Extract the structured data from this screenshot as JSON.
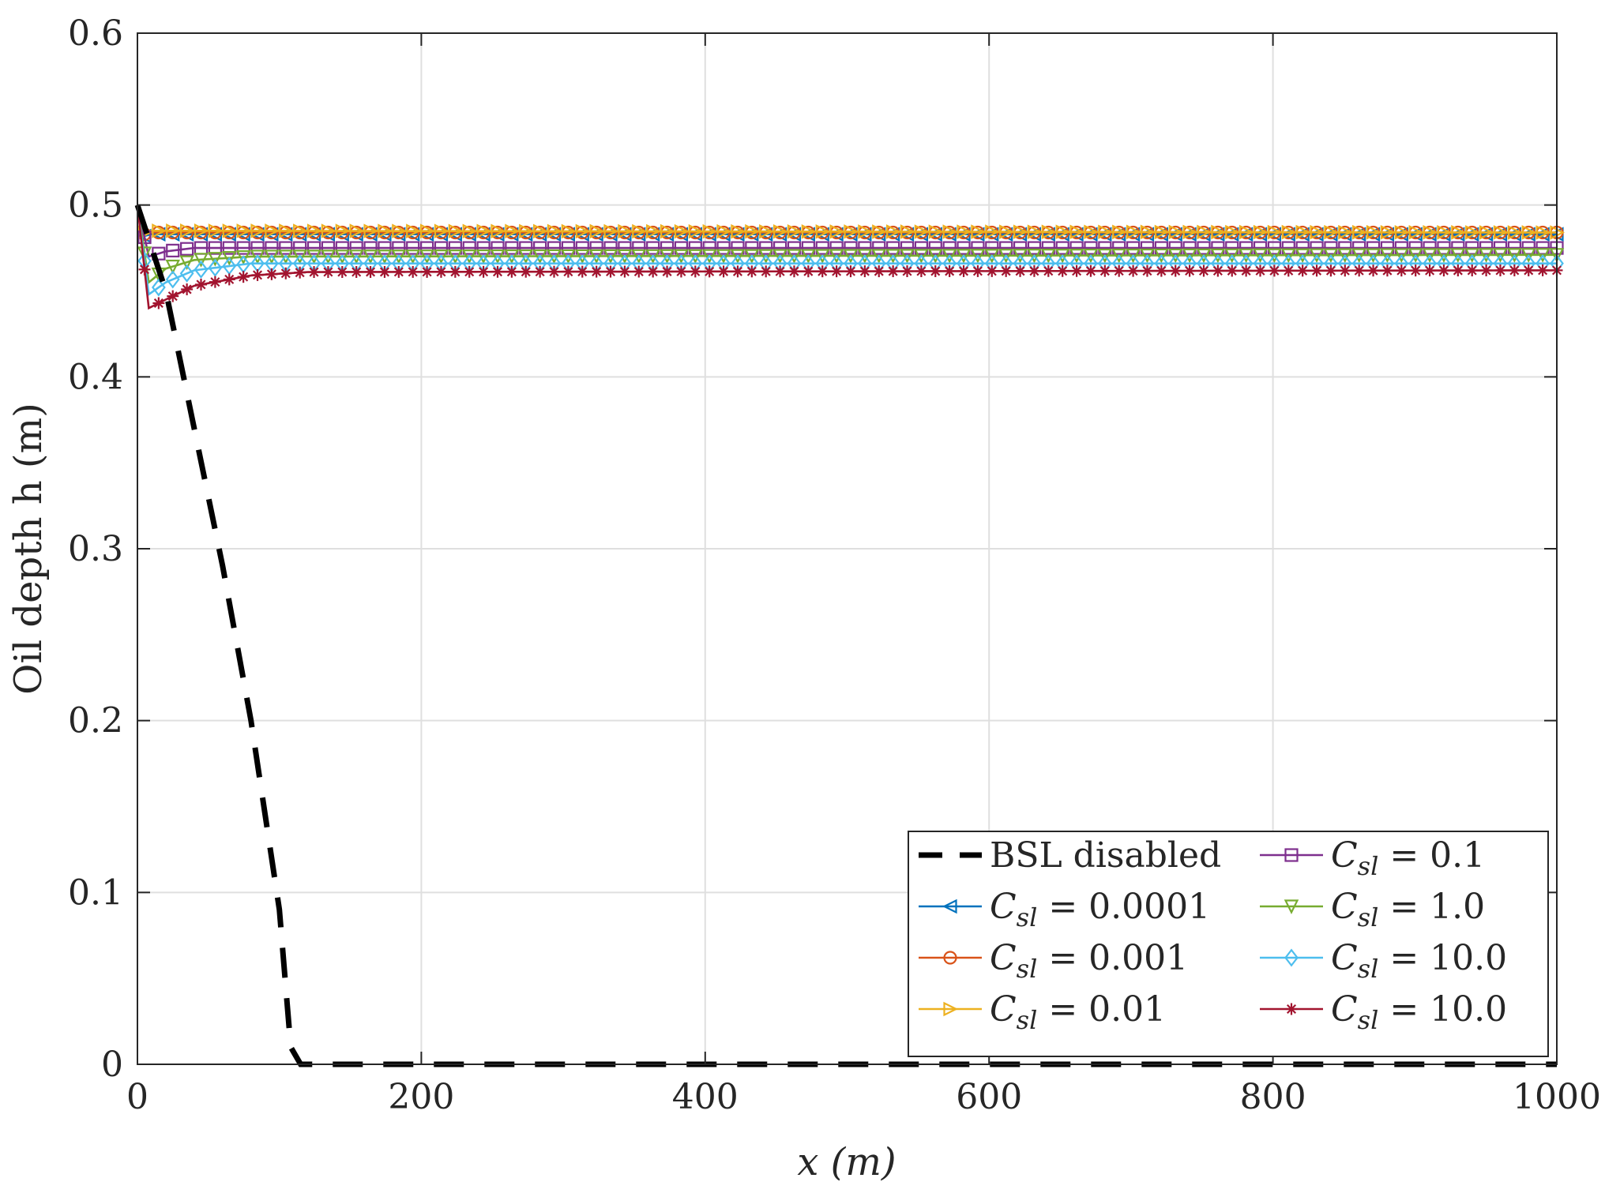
{
  "chart_data": {
    "type": "line",
    "xlabel": "x (m)",
    "ylabel": "Oil depth h (m)",
    "xlim": [
      0,
      1000
    ],
    "ylim": [
      0,
      0.6
    ],
    "xticks": [
      0,
      200,
      400,
      600,
      800,
      1000
    ],
    "xtick_labels": [
      "0",
      "200",
      "400",
      "600",
      "800",
      "1000"
    ],
    "yticks": [
      0,
      0.1,
      0.2,
      0.3,
      0.4,
      0.5,
      0.6
    ],
    "ytick_labels": [
      "0",
      "0.1",
      "0.2",
      "0.3",
      "0.4",
      "0.5",
      "0.6"
    ],
    "grid": true,
    "legend": {
      "position": "bottom-right",
      "columns": 2
    },
    "series": [
      {
        "name": "BSL disabled",
        "color": "#000000",
        "style": "dashed",
        "marker": "none",
        "x": [
          0,
          20,
          40,
          60,
          80,
          100,
          108,
          115,
          1000
        ],
        "y": [
          0.5,
          0.45,
          0.37,
          0.29,
          0.2,
          0.09,
          0.01,
          0,
          0
        ]
      },
      {
        "name": "C_sl = 0.0001",
        "label_value": "0.0001",
        "color": "#0072BD",
        "style": "solid",
        "marker": "triangle-left",
        "x": [
          0,
          5,
          10,
          20,
          40,
          1000
        ],
        "y": [
          0.5,
          0.482,
          0.483,
          0.483,
          0.483,
          0.483
        ]
      },
      {
        "name": "C_sl = 0.001",
        "label_value": "0.001",
        "color": "#D95319",
        "style": "solid",
        "marker": "circle",
        "x": [
          0,
          5,
          10,
          20,
          40,
          1000
        ],
        "y": [
          0.5,
          0.483,
          0.484,
          0.484,
          0.484,
          0.484
        ]
      },
      {
        "name": "C_sl = 0.01",
        "label_value": "0.01",
        "color": "#EDB120",
        "style": "solid",
        "marker": "triangle-right",
        "x": [
          0,
          5,
          10,
          20,
          40,
          1000
        ],
        "y": [
          0.5,
          0.484,
          0.485,
          0.485,
          0.485,
          0.484
        ]
      },
      {
        "name": "C_sl = 0.1",
        "label_value": "0.1",
        "color": "#7E2F8E",
        "style": "solid",
        "marker": "square",
        "x": [
          0,
          8,
          20,
          40,
          80,
          1000
        ],
        "y": [
          0.5,
          0.47,
          0.473,
          0.475,
          0.475,
          0.475
        ]
      },
      {
        "name": "C_sl = 1.0",
        "label_value": "1.0",
        "color": "#77AC30",
        "style": "solid",
        "marker": "triangle-down",
        "x": [
          0,
          8,
          20,
          40,
          80,
          1000
        ],
        "y": [
          0.5,
          0.455,
          0.463,
          0.468,
          0.47,
          0.471
        ]
      },
      {
        "name": "C_sl = 10.0",
        "label_value": "10.0",
        "color": "#4DBEEE",
        "style": "solid",
        "marker": "diamond",
        "x": [
          0,
          8,
          20,
          40,
          80,
          1000
        ],
        "y": [
          0.5,
          0.448,
          0.455,
          0.462,
          0.466,
          0.466
        ]
      },
      {
        "name": "C_sl = 10.0",
        "label_value": "10.0",
        "color": "#A2142F",
        "style": "solid",
        "marker": "asterisk",
        "x": [
          0,
          8,
          20,
          40,
          80,
          120,
          1000
        ],
        "y": [
          0.5,
          0.44,
          0.445,
          0.453,
          0.459,
          0.461,
          0.462
        ]
      }
    ]
  }
}
